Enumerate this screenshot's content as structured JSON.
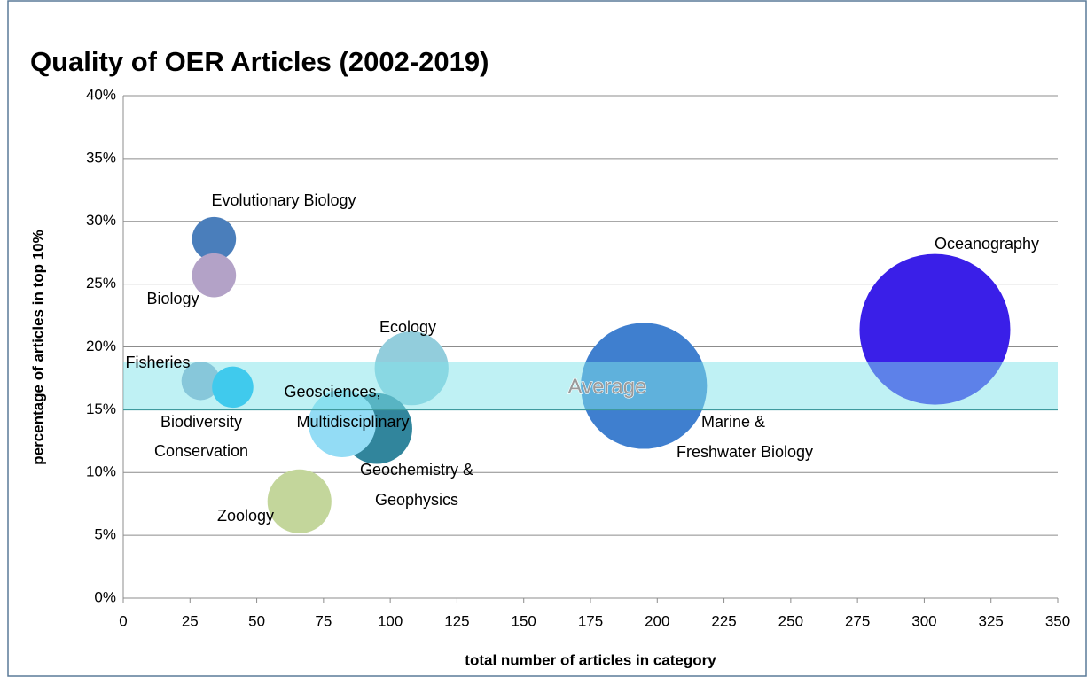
{
  "chart_data": {
    "type": "bubble",
    "title": "Quality of OER Articles (2002-2019)",
    "x_label": "total number of articles in category",
    "y_label": "percentage of articles in top 10%",
    "labels": [
      [
        "Evolutionary Biology"
      ],
      [
        "Biology"
      ],
      [
        "Fisheries"
      ],
      [
        "Biodiversity",
        "Conservation"
      ],
      [
        "Ecology"
      ],
      [
        "Geochemistry &",
        "Geophysics"
      ],
      [
        "Geosciences,",
        "Multidisciplinary"
      ],
      [
        "Zoology"
      ],
      [
        "Marine &",
        "Freshwater Biology"
      ],
      [
        "Oceanography"
      ]
    ],
    "x": [
      34,
      34,
      29,
      41,
      108,
      95,
      82,
      66,
      195,
      304
    ],
    "y": [
      28.6,
      25.7,
      17.3,
      16.8,
      18.3,
      13.5,
      13.9,
      7.7,
      16.9,
      21.4
    ],
    "sizes": [
      8.5,
      8.5,
      6.5,
      7.5,
      24,
      22,
      20,
      18,
      70,
      100
    ],
    "colors": [
      "#4a7ebb",
      "#b3a2c7",
      "#8eaacb",
      "#00b0f0",
      "#92cddc",
      "#31859c",
      "#93dcf5",
      "#c3d69b",
      "#3f7fcf",
      "#3a1fe8"
    ],
    "average_band": [
      15,
      18.8
    ],
    "average_label": "Average",
    "band_color": "#7fe3ea",
    "xlim": [
      0,
      350
    ],
    "xticks": [
      0,
      25,
      50,
      75,
      100,
      125,
      150,
      175,
      200,
      225,
      250,
      275,
      300,
      325,
      350
    ],
    "ylim": [
      0,
      40
    ],
    "yticks": [
      {
        "value": 0,
        "label": "0%"
      },
      {
        "value": 5,
        "label": "5%"
      },
      {
        "value": 10,
        "label": "10%"
      },
      {
        "value": 15,
        "label": "15%"
      },
      {
        "value": 20,
        "label": "20%"
      },
      {
        "value": 25,
        "label": "25%"
      },
      {
        "value": 30,
        "label": "30%"
      },
      {
        "value": 35,
        "label": "35%"
      },
      {
        "value": 40,
        "label": "40%"
      }
    ],
    "grid": true
  }
}
